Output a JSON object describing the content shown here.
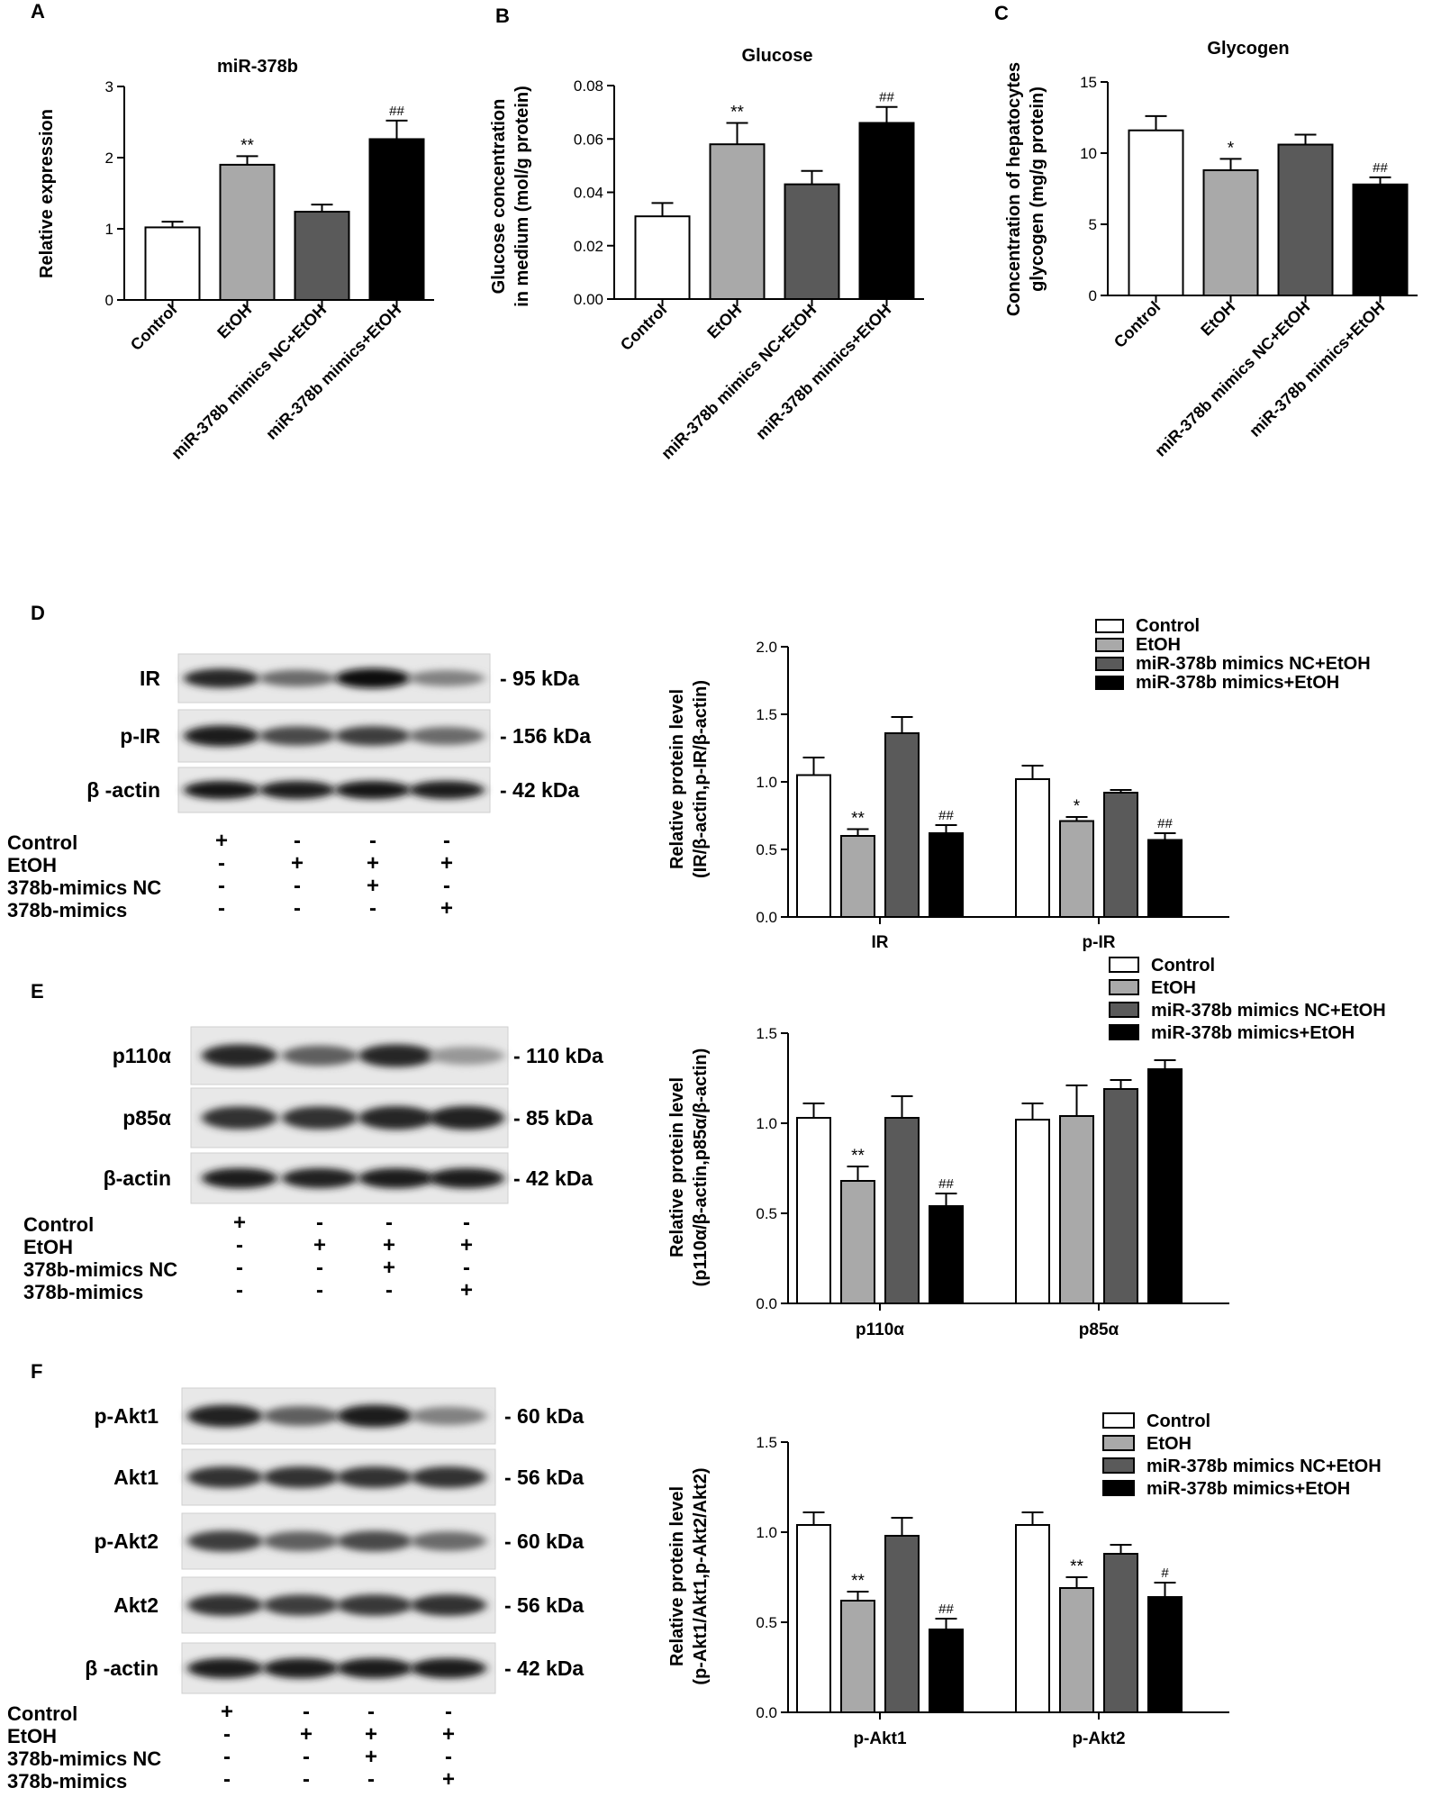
{
  "colors": {
    "Control": "#ffffff",
    "EtOH": "#a9a9a9",
    "miR-378b mimics NC+EtOH": "#5a5a5a",
    "miR-378b mimics+EtOH": "#000000"
  },
  "groups": [
    "Control",
    "EtOH",
    "miR-378b mimics NC+EtOH",
    "miR-378b mimics+EtOH"
  ],
  "chart_data": [
    {
      "panel": "A",
      "type": "bar",
      "title": "miR-378b",
      "ylabel": "Relative  expression",
      "categories": [
        "Control",
        "EtOH",
        "miR-378b mimics NC+EtOH",
        "miR-378b mimics+EtOH"
      ],
      "values": [
        1.02,
        1.9,
        1.24,
        2.26
      ],
      "errors": [
        0.08,
        0.12,
        0.1,
        0.26
      ],
      "annotations": [
        "",
        "**",
        "",
        "##"
      ],
      "ylim": [
        0,
        3
      ],
      "yticks": [
        "0",
        "1",
        "2",
        "3"
      ],
      "ytick_values": [
        0,
        1,
        2,
        3
      ]
    },
    {
      "panel": "B",
      "type": "bar",
      "title": "Glucose",
      "ylabel": [
        "Glucose concentration",
        "in medium (mol/g protein)"
      ],
      "categories": [
        "Control",
        "EtOH",
        "miR-378b mimics NC+EtOH",
        "miR-378b mimics+EtOH"
      ],
      "values": [
        0.031,
        0.058,
        0.043,
        0.066
      ],
      "errors": [
        0.005,
        0.008,
        0.005,
        0.006
      ],
      "annotations": [
        "",
        "**",
        "",
        "##"
      ],
      "ylim": [
        0,
        0.08
      ],
      "yticks": [
        "0.00",
        "0.02",
        "0.04",
        "0.06",
        "0.08"
      ],
      "ytick_values": [
        0,
        0.02,
        0.04,
        0.06,
        0.08
      ]
    },
    {
      "panel": "C",
      "type": "bar",
      "title": "Glycogen",
      "ylabel": [
        "Concentration of hepatocytes",
        "glycogen (mg/g protein)"
      ],
      "categories": [
        "Control",
        "EtOH",
        "miR-378b mimics NC+EtOH",
        "miR-378b mimics+EtOH"
      ],
      "values": [
        11.6,
        8.8,
        10.6,
        7.8
      ],
      "errors": [
        1.0,
        0.8,
        0.7,
        0.5
      ],
      "annotations": [
        "",
        "*",
        "",
        "##"
      ],
      "ylim": [
        0,
        15
      ],
      "yticks": [
        "0",
        "5",
        "10",
        "15"
      ],
      "ytick_values": [
        0,
        5,
        10,
        15
      ]
    },
    {
      "panel": "D",
      "type": "bar",
      "ylabel": [
        "Relative  protein level",
        "(IR/β-actin,p-IR/β-actin)"
      ],
      "categories": [
        "IR",
        "p-IR"
      ],
      "legend": [
        "Control",
        "EtOH",
        "miR-378b mimics NC+EtOH",
        "miR-378b mimics+EtOH"
      ],
      "series": [
        {
          "name": "Control",
          "values": [
            1.05,
            1.02
          ],
          "errors": [
            0.13,
            0.1
          ]
        },
        {
          "name": "EtOH",
          "values": [
            0.6,
            0.71
          ],
          "errors": [
            0.05,
            0.03
          ]
        },
        {
          "name": "miR-378b mimics NC+EtOH",
          "values": [
            1.36,
            0.92
          ],
          "errors": [
            0.12,
            0.02
          ]
        },
        {
          "name": "miR-378b mimics+EtOH",
          "values": [
            0.62,
            0.57
          ],
          "errors": [
            0.06,
            0.05
          ]
        }
      ],
      "annotations": [
        [
          "",
          "**",
          "",
          "##"
        ],
        [
          "",
          "*",
          "",
          "##"
        ]
      ],
      "ylim": [
        0,
        2
      ],
      "yticks": [
        "0.0",
        "0.5",
        "1.0",
        "1.5",
        "2.0"
      ],
      "ytick_values": [
        0,
        0.5,
        1,
        1.5,
        2
      ]
    },
    {
      "panel": "E",
      "type": "bar",
      "ylabel": [
        "Relative  protein level",
        "(p110α/β-actin,p85α/β-actin)"
      ],
      "categories": [
        "p110α",
        "p85α"
      ],
      "legend": [
        "Control",
        "EtOH",
        "miR-378b mimics NC+EtOH",
        "miR-378b mimics+EtOH"
      ],
      "series": [
        {
          "name": "Control",
          "values": [
            1.03,
            1.02
          ],
          "errors": [
            0.08,
            0.09
          ]
        },
        {
          "name": "EtOH",
          "values": [
            0.68,
            1.04
          ],
          "errors": [
            0.08,
            0.17
          ]
        },
        {
          "name": "miR-378b mimics NC+EtOH",
          "values": [
            1.03,
            1.19
          ],
          "errors": [
            0.12,
            0.05
          ]
        },
        {
          "name": "miR-378b mimics+EtOH",
          "values": [
            0.54,
            1.3
          ],
          "errors": [
            0.07,
            0.05
          ]
        }
      ],
      "annotations": [
        [
          "",
          "**",
          "",
          "##"
        ],
        [
          "",
          "",
          "",
          ""
        ]
      ],
      "ylim": [
        0,
        1.5
      ],
      "yticks": [
        "0.0",
        "0.5",
        "1.0",
        "1.5"
      ],
      "ytick_values": [
        0,
        0.5,
        1,
        1.5
      ]
    },
    {
      "panel": "F",
      "type": "bar",
      "ylabel": [
        "Relative  protein level",
        "(p-Akt1/Akt1,p-Akt2/Akt2)"
      ],
      "categories": [
        "p-Akt1",
        "p-Akt2"
      ],
      "legend": [
        "Control",
        "EtOH",
        "miR-378b mimics NC+EtOH",
        "miR-378b mimics+EtOH"
      ],
      "series": [
        {
          "name": "Control",
          "values": [
            1.04,
            1.04
          ],
          "errors": [
            0.07,
            0.07
          ]
        },
        {
          "name": "EtOH",
          "values": [
            0.62,
            0.69
          ],
          "errors": [
            0.05,
            0.06
          ]
        },
        {
          "name": "miR-378b mimics NC+EtOH",
          "values": [
            0.98,
            0.88
          ],
          "errors": [
            0.1,
            0.05
          ]
        },
        {
          "name": "miR-378b mimics+EtOH",
          "values": [
            0.46,
            0.64
          ],
          "errors": [
            0.06,
            0.08
          ]
        }
      ],
      "annotations": [
        [
          "",
          "**",
          "",
          "##"
        ],
        [
          "",
          "**",
          "",
          "#"
        ]
      ],
      "ylim": [
        0,
        1.5
      ],
      "yticks": [
        "0.0",
        "0.5",
        "1.0",
        "1.5"
      ],
      "ytick_values": [
        0,
        0.5,
        1,
        1.5
      ]
    }
  ],
  "blots": {
    "D": {
      "rows": [
        {
          "name": "IR",
          "kda": "- 95 kDa",
          "intensity": [
            0.85,
            0.55,
            0.95,
            0.45
          ]
        },
        {
          "name": "p-IR",
          "kda": "- 156 kDa",
          "intensity": [
            0.9,
            0.7,
            0.75,
            0.55
          ]
        },
        {
          "name": "β -actin",
          "kda": "- 42 kDa",
          "intensity": [
            0.92,
            0.9,
            0.92,
            0.9
          ]
        }
      ],
      "conditions": [
        {
          "name": "Control",
          "signs": [
            "+",
            "-",
            "-",
            "-"
          ]
        },
        {
          "name": "EtOH",
          "signs": [
            "-",
            "+",
            "+",
            "+"
          ]
        },
        {
          "name": "378b-mimics NC",
          "signs": [
            "-",
            "-",
            "+",
            "-"
          ]
        },
        {
          "name": "378b-mimics",
          "signs": [
            "-",
            "-",
            "-",
            "+"
          ]
        }
      ]
    },
    "E": {
      "rows": [
        {
          "name": "p110α",
          "kda": "- 110 kDa",
          "intensity": [
            0.85,
            0.6,
            0.85,
            0.35
          ]
        },
        {
          "name": "p85α",
          "kda": "- 85 kDa",
          "intensity": [
            0.8,
            0.8,
            0.85,
            0.88
          ]
        },
        {
          "name": "β-actin",
          "kda": "- 42 kDa",
          "intensity": [
            0.9,
            0.88,
            0.9,
            0.9
          ]
        }
      ],
      "conditions": [
        {
          "name": "Control",
          "signs": [
            "+",
            "-",
            "-",
            "-"
          ]
        },
        {
          "name": "EtOH",
          "signs": [
            "-",
            "+",
            "+",
            "+"
          ]
        },
        {
          "name": "378b-mimics NC",
          "signs": [
            "-",
            "-",
            "+",
            "-"
          ]
        },
        {
          "name": "378b-mimics",
          "signs": [
            "-",
            "-",
            "-",
            "+"
          ]
        }
      ]
    },
    "F": {
      "rows": [
        {
          "name": "p-Akt1",
          "kda": "- 60 kDa",
          "intensity": [
            0.88,
            0.6,
            0.9,
            0.45
          ]
        },
        {
          "name": "Akt1",
          "kda": "- 56 kDa",
          "intensity": [
            0.8,
            0.8,
            0.8,
            0.8
          ]
        },
        {
          "name": "p-Akt2",
          "kda": "- 60 kDa",
          "intensity": [
            0.75,
            0.6,
            0.7,
            0.55
          ]
        },
        {
          "name": "Akt2",
          "kda": "- 56 kDa",
          "intensity": [
            0.8,
            0.75,
            0.78,
            0.8
          ]
        },
        {
          "name": "β -actin",
          "kda": "- 42 kDa",
          "intensity": [
            0.9,
            0.9,
            0.9,
            0.9
          ]
        }
      ],
      "conditions": [
        {
          "name": "Control",
          "signs": [
            "+",
            "-",
            "-",
            "-"
          ]
        },
        {
          "name": "EtOH",
          "signs": [
            "-",
            "+",
            "+",
            "+"
          ]
        },
        {
          "name": "378b-mimics NC",
          "signs": [
            "-",
            "-",
            "+",
            "-"
          ]
        },
        {
          "name": "378b-mimics",
          "signs": [
            "-",
            "-",
            "-",
            "+"
          ]
        }
      ]
    }
  }
}
